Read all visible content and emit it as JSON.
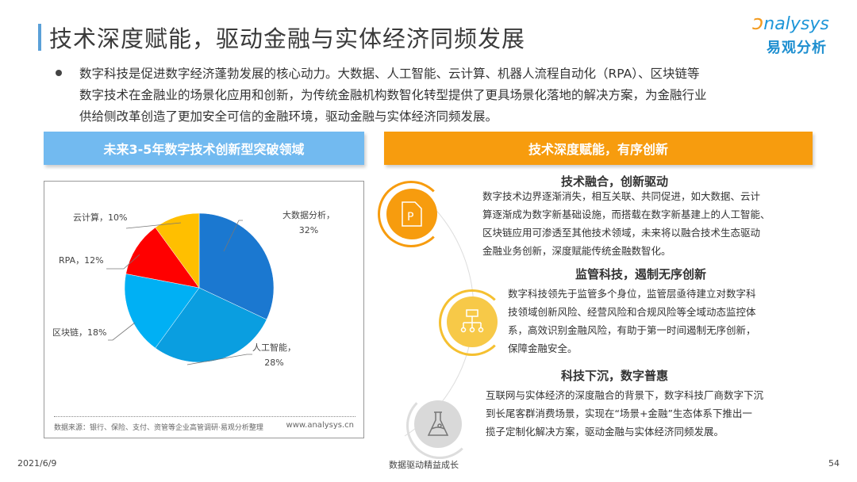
{
  "header": {
    "title": "技术深度赋能，驱动金融与实体经济同频发展",
    "logo_en": "nalysys",
    "logo_cn": "易观分析"
  },
  "intro": {
    "lines": [
      "数字科技是促进数字经济蓬勃发展的核心动力。大数据、人工智能、云计算、机器人流程自动化（RPA）、区块链等",
      "数字技术在金融业的场景化应用和创新，为传统金融机构数智化转型提供了更具场景化落地的解决方案，为金融行业",
      "供给侧改革创造了更加安全可信的金融环境，驱动金融与实体经济同频发展。"
    ]
  },
  "left_banner": "未来3-5年数字技术创新型突破领域",
  "right_banner": "技术深度赋能，有序创新",
  "chart_data": {
    "type": "pie",
    "start": "top",
    "direction": "clockwise",
    "categories": [
      "大数据分析",
      "人工智能",
      "区块链",
      "RPA",
      "云计算"
    ],
    "values": [
      32,
      28,
      18,
      12,
      10
    ],
    "labels": [
      "大数据分析，32%",
      "人工智能，28%",
      "区块链，18%",
      "RPA，12%",
      "云计算，10%"
    ],
    "colors": [
      "#1b78d0",
      "#0a9ee0",
      "#00b0f4",
      "#ff0000",
      "#ffbf00"
    ]
  },
  "chart_labels": {
    "bigdata_1": "大数据分析，",
    "bigdata_2": "32%",
    "ai_1": "人工智能，",
    "ai_2": "28%",
    "blockchain": "区块链，18%",
    "rpa": "RPA，12%",
    "cloud": "云计算，10%"
  },
  "chart_source": "数据来源：银行、保险、支付、资管等企业高管调研·易观分析整理",
  "chart_site": "www.analysys.cn",
  "sections": [
    {
      "title": "技术融合，创新驱动",
      "icon": "document-p-icon",
      "lines": [
        "数字技术边界逐渐消失，相互关联、共同促进，如大数据、云计",
        "算逐渐成为数字新基础设施，而搭载在数字新基建上的人工智能、",
        "区块链应用可渗透至其他技术领域，未来将以融合技术生态驱动",
        "金融业务创新，深度赋能传统金融数智化。"
      ]
    },
    {
      "title": "监管科技，遏制无序创新",
      "icon": "hierarchy-icon",
      "lines": [
        "数字科技领先于监管多个身位，监管层亟待建立对数字科",
        "技领域创新风险、经营风险和合规风险等全域动态监控体",
        "系，高效识别金融风险，有助于第一时间遏制无序创新，",
        "保障金融安全。"
      ]
    },
    {
      "title": "科技下沉，数字普惠",
      "icon": "flask-icon",
      "lines": [
        "互联网与实体经济的深度融合的背景下，数字科技厂商数字下沉",
        "到长尾客群消费场景，实现在“场景+金融”生态体系下推出一",
        "揽子定制化解决方案，驱动金融与实体经济同频发展。"
      ]
    }
  ],
  "footer": {
    "date": "2021/6/9",
    "center": "数据驱动精益成长",
    "page": "54"
  }
}
